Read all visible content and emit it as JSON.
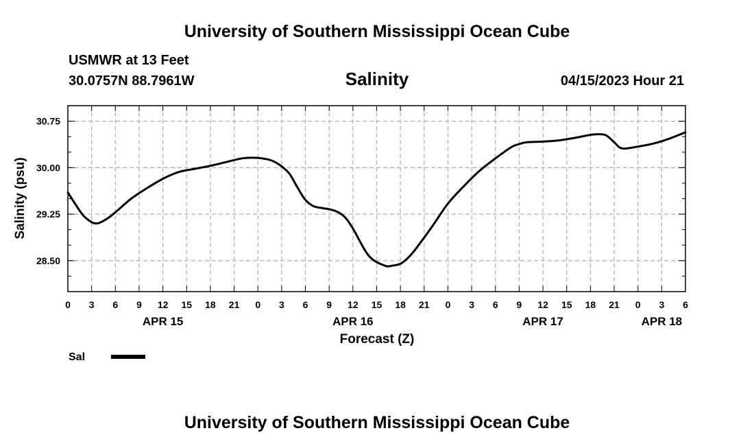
{
  "header": {
    "title": "University of Southern Mississippi Ocean Cube",
    "station": "USMWR at 13 Feet",
    "coords": "30.0757N  88.7961W",
    "variable": "Salinity",
    "datetime": "04/15/2023 Hour 21"
  },
  "footer": {
    "title": "University of Southern Mississippi Ocean Cube"
  },
  "chart_data": {
    "type": "line",
    "title": "Salinity",
    "xlabel": "Forecast (Z)",
    "ylabel": "Salinity (psu)",
    "x_unit": "forecast hour from APR 15 00Z",
    "xlim": [
      0,
      78
    ],
    "ylim": [
      28.0,
      31.0
    ],
    "grid": true,
    "legend_position": "bottom-left",
    "y_ticks": [
      "30.75",
      "30.00",
      "29.25",
      "28.50"
    ],
    "y_tick_values": [
      30.75,
      30.0,
      29.25,
      28.5
    ],
    "x_tick_labels": [
      "0",
      "3",
      "6",
      "9",
      "12",
      "15",
      "18",
      "21",
      "0",
      "3",
      "6",
      "9",
      "12",
      "15",
      "18",
      "21",
      "0",
      "3",
      "6",
      "9",
      "12",
      "15",
      "18",
      "21",
      "0",
      "3",
      "6"
    ],
    "day_labels": [
      {
        "label": "APR 15",
        "hour": 12
      },
      {
        "label": "APR 16",
        "hour": 36
      },
      {
        "label": "APR 17",
        "hour": 60
      },
      {
        "label": "APR 18",
        "hour": 75
      }
    ],
    "series": [
      {
        "name": "Sal",
        "color": "#000000",
        "x": [
          0,
          1,
          2,
          3,
          3.5,
          4,
          5,
          6,
          8,
          10,
          12,
          14,
          16,
          18,
          20,
          22,
          23.5,
          25,
          26,
          27,
          28,
          29,
          30,
          31,
          32,
          33,
          34,
          35,
          36,
          38,
          40,
          41,
          42,
          43,
          44,
          46,
          48,
          50,
          52,
          54,
          56,
          57,
          58,
          60,
          62,
          64,
          66,
          67,
          68,
          69,
          70,
          72,
          74,
          76,
          78
        ],
        "values": [
          29.6,
          29.4,
          29.22,
          29.12,
          29.1,
          29.11,
          29.18,
          29.28,
          29.5,
          29.67,
          29.82,
          29.93,
          29.98,
          30.03,
          30.09,
          30.15,
          30.16,
          30.14,
          30.1,
          30.02,
          29.9,
          29.68,
          29.48,
          29.38,
          29.35,
          29.33,
          29.29,
          29.2,
          29.02,
          28.58,
          28.42,
          28.42,
          28.45,
          28.55,
          28.7,
          29.05,
          29.42,
          29.7,
          29.95,
          30.15,
          30.33,
          30.38,
          30.41,
          30.42,
          30.44,
          30.48,
          30.53,
          30.54,
          30.52,
          30.41,
          30.31,
          30.34,
          30.39,
          30.47,
          30.57
        ]
      }
    ]
  }
}
